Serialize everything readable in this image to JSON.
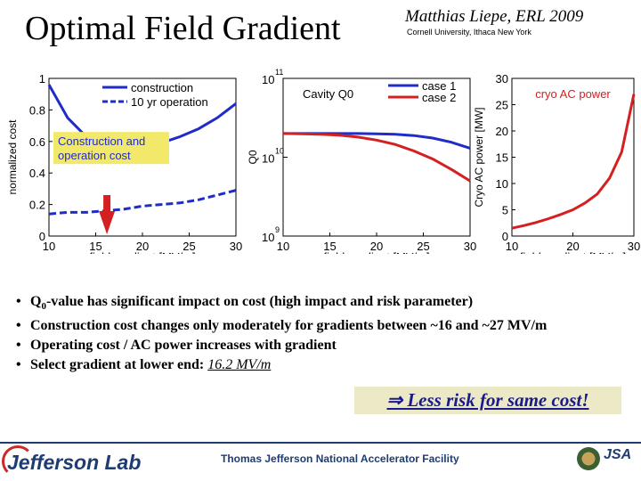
{
  "slide": {
    "title": "Optimal Field Gradient",
    "author": "Matthias Liepe, ERL 2009",
    "affiliation": "Cornell University, Ithaca New York"
  },
  "chart_data": [
    {
      "type": "line",
      "xlabel": "field gradient  [MV/m]",
      "ylabel": "normalized cost",
      "xlim": [
        10,
        30
      ],
      "ylim": [
        0,
        1
      ],
      "xticks": [
        "10",
        "15",
        "20",
        "25",
        "30"
      ],
      "yticks": [
        "0",
        "0.2",
        "0.4",
        "0.6",
        "0.8",
        "1"
      ],
      "legend_location": "top",
      "annotation": "Construction and operation cost",
      "series": [
        {
          "name": "construction",
          "color": "#1f2cc8",
          "style": "solid",
          "x": [
            10,
            12,
            14,
            16,
            18,
            20,
            22,
            24,
            26,
            28,
            30
          ],
          "y": [
            0.96,
            0.75,
            0.63,
            0.57,
            0.55,
            0.56,
            0.59,
            0.63,
            0.68,
            0.75,
            0.84
          ]
        },
        {
          "name": "10 yr operation",
          "color": "#1f2cc8",
          "style": "dashed",
          "x": [
            10,
            12,
            14,
            16,
            18,
            20,
            22,
            24,
            26,
            28,
            30
          ],
          "y": [
            0.14,
            0.15,
            0.15,
            0.16,
            0.17,
            0.19,
            0.2,
            0.21,
            0.23,
            0.26,
            0.29
          ]
        }
      ],
      "arrow_at_x": 16.2
    },
    {
      "type": "line",
      "xlabel": "field gradient  [MV/m]",
      "ylabel": "Q0",
      "yscale": "log",
      "xlim": [
        10,
        30
      ],
      "ylim": [
        1000000000.0,
        100000000000.0
      ],
      "xticks": [
        "10",
        "15",
        "20",
        "25",
        "30"
      ],
      "legend_title": "Cavity Q0",
      "series": [
        {
          "name": "case 1",
          "color": "#1f2cc8",
          "style": "solid",
          "x": [
            10,
            12,
            14,
            16,
            18,
            20,
            22,
            24,
            26,
            28,
            30
          ],
          "y": [
            20000000000.0,
            20000000000.0,
            20000000000.0,
            20000000000.0,
            20000000000.0,
            19800000000.0,
            19500000000.0,
            18800000000.0,
            17500000000.0,
            15500000000.0,
            13000000000.0
          ]
        },
        {
          "name": "case 2",
          "color": "#d42020",
          "style": "solid",
          "x": [
            10,
            12,
            14,
            16,
            18,
            20,
            22,
            24,
            26,
            28,
            30
          ],
          "y": [
            20000000000.0,
            19800000000.0,
            19500000000.0,
            19000000000.0,
            18000000000.0,
            16500000000.0,
            14500000000.0,
            12000000000.0,
            9500000000.0,
            7000000000.0,
            5000000000.0
          ]
        }
      ]
    },
    {
      "type": "line",
      "xlabel": "field gradient  [MV/m]",
      "ylabel": "Cryo AC power [MW]",
      "xlim": [
        10,
        30
      ],
      "ylim": [
        0,
        30
      ],
      "yticks": [
        "0",
        "5",
        "10",
        "15",
        "20",
        "25",
        "30"
      ],
      "xticks": [
        "10",
        "20",
        "30"
      ],
      "legend_title": "cryo AC power",
      "series": [
        {
          "name": "cryo AC power",
          "color": "#d42020",
          "style": "solid",
          "x": [
            10,
            12,
            14,
            16,
            18,
            20,
            22,
            24,
            26,
            28,
            30
          ],
          "y": [
            1.5,
            2.0,
            2.6,
            3.3,
            4.1,
            5.0,
            6.3,
            8.0,
            11.0,
            16.0,
            27.0
          ]
        }
      ]
    }
  ],
  "bullets": [
    {
      "prefix": "Q",
      "sub": "0",
      "text": "-value has significant impact on cost (high impact and risk parameter)"
    },
    {
      "text": "Construction cost changes only moderately for gradients between   ~16 and ~27 MV/m"
    },
    {
      "text": "Operating cost / AC power increases with gradient"
    },
    {
      "text": "Select gradient at lower end: ",
      "highlight": "16.2 MV/m"
    }
  ],
  "bullet_glyph": "•",
  "callout": "⇒ Less risk for same cost!",
  "footer": {
    "logo_text": "Jefferson Lab",
    "facility": "Thomas Jefferson National Accelerator Facility",
    "partner": "JSA"
  },
  "colors": {
    "blue": "#1f2cc8",
    "red": "#d42020",
    "callout_bg": "#ece9c6",
    "footer_blue": "#1f3c72"
  }
}
